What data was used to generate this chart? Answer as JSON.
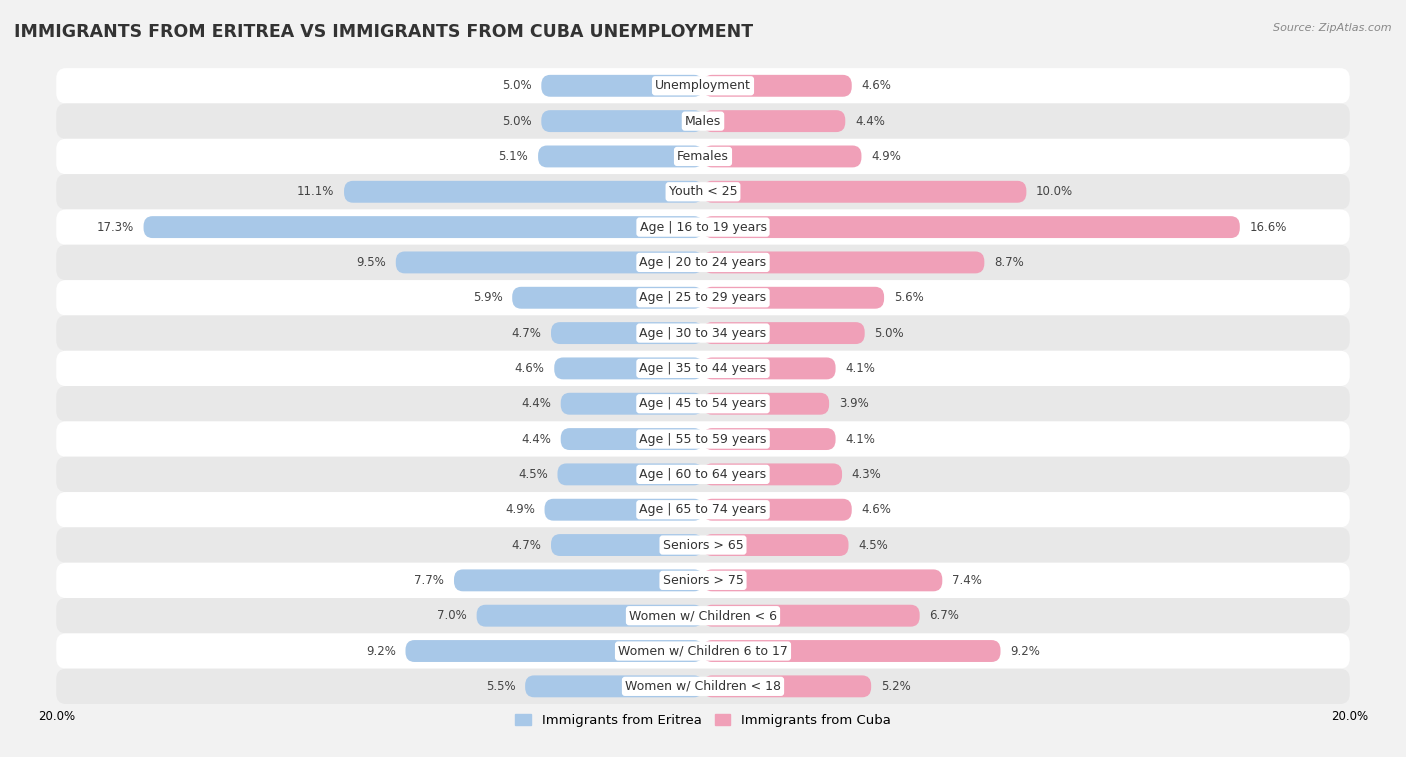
{
  "title": "IMMIGRANTS FROM ERITREA VS IMMIGRANTS FROM CUBA UNEMPLOYMENT",
  "source": "Source: ZipAtlas.com",
  "categories": [
    "Unemployment",
    "Males",
    "Females",
    "Youth < 25",
    "Age | 16 to 19 years",
    "Age | 20 to 24 years",
    "Age | 25 to 29 years",
    "Age | 30 to 34 years",
    "Age | 35 to 44 years",
    "Age | 45 to 54 years",
    "Age | 55 to 59 years",
    "Age | 60 to 64 years",
    "Age | 65 to 74 years",
    "Seniors > 65",
    "Seniors > 75",
    "Women w/ Children < 6",
    "Women w/ Children 6 to 17",
    "Women w/ Children < 18"
  ],
  "eritrea_values": [
    5.0,
    5.0,
    5.1,
    11.1,
    17.3,
    9.5,
    5.9,
    4.7,
    4.6,
    4.4,
    4.4,
    4.5,
    4.9,
    4.7,
    7.7,
    7.0,
    9.2,
    5.5
  ],
  "cuba_values": [
    4.6,
    4.4,
    4.9,
    10.0,
    16.6,
    8.7,
    5.6,
    5.0,
    4.1,
    3.9,
    4.1,
    4.3,
    4.6,
    4.5,
    7.4,
    6.7,
    9.2,
    5.2
  ],
  "eritrea_color": "#a8c8e8",
  "cuba_color": "#f0a0b8",
  "background_color": "#f2f2f2",
  "row_color_odd": "#ffffff",
  "row_color_even": "#e8e8e8",
  "max_value": 20.0,
  "legend_eritrea": "Immigrants from Eritrea",
  "legend_cuba": "Immigrants from Cuba",
  "title_fontsize": 12.5,
  "label_fontsize": 9,
  "value_fontsize": 8.5
}
